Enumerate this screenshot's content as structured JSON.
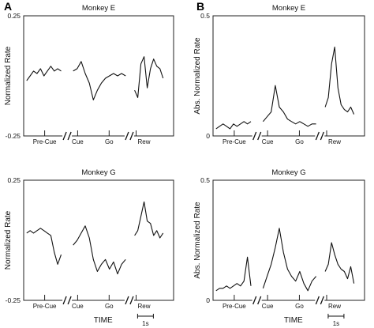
{
  "chart_data": [
    {
      "type": "line",
      "panel_letter": "A",
      "title": "Monkey E",
      "ylabel": "Normalized Rate",
      "ylim": [
        -0.25,
        0.25
      ],
      "yticks": [
        "0.25",
        "-0.25"
      ],
      "xticks": [
        "Pre-Cue",
        "Cue",
        "Go",
        "Rew"
      ],
      "xlabel": "",
      "segments": [
        {
          "x": [
            0,
            10,
            20,
            30,
            40,
            50,
            60,
            70,
            80,
            90,
            100
          ],
          "y": [
            -0.02,
            0.0,
            0.02,
            0.01,
            0.03,
            0.0,
            0.02,
            0.04,
            0.02,
            0.03,
            0.02
          ]
        },
        {
          "x": [
            0,
            8,
            16,
            24,
            32,
            40,
            48,
            56,
            64,
            72,
            80,
            88,
            96,
            104
          ],
          "y": [
            0.02,
            0.03,
            0.06,
            0.01,
            -0.03,
            -0.1,
            -0.06,
            -0.03,
            -0.01,
            0.0,
            0.01,
            0.0,
            0.01,
            0.0
          ]
        },
        {
          "x": [
            0,
            5,
            10,
            15,
            20,
            25,
            30,
            35,
            40,
            45
          ],
          "y": [
            -0.06,
            -0.09,
            0.05,
            0.08,
            -0.05,
            0.03,
            0.07,
            0.04,
            0.03,
            -0.01
          ]
        }
      ]
    },
    {
      "type": "line",
      "panel_letter": "B",
      "title": "Monkey E",
      "ylabel": "Abs. Normalized Rate",
      "ylim": [
        0,
        0.5
      ],
      "yticks": [
        "0.5",
        "0"
      ],
      "xticks": [
        "Pre-Cue",
        "Cue",
        "Go",
        "Rew"
      ],
      "xlabel": "",
      "segments": [
        {
          "x": [
            0,
            10,
            20,
            30,
            40,
            50,
            60,
            70,
            80,
            90,
            100
          ],
          "y": [
            0.03,
            0.04,
            0.05,
            0.04,
            0.03,
            0.05,
            0.04,
            0.05,
            0.06,
            0.05,
            0.06
          ]
        },
        {
          "x": [
            0,
            8,
            16,
            24,
            32,
            40,
            48,
            56,
            64,
            72,
            80,
            88,
            96,
            104
          ],
          "y": [
            0.06,
            0.08,
            0.1,
            0.21,
            0.12,
            0.1,
            0.07,
            0.06,
            0.05,
            0.06,
            0.05,
            0.04,
            0.05,
            0.05
          ]
        },
        {
          "x": [
            0,
            5,
            10,
            15,
            20,
            25,
            30,
            35,
            40,
            45
          ],
          "y": [
            0.12,
            0.16,
            0.3,
            0.37,
            0.2,
            0.13,
            0.11,
            0.1,
            0.12,
            0.09
          ]
        }
      ]
    },
    {
      "type": "line",
      "title": "Monkey G",
      "ylabel": "Normalized Rate",
      "ylim": [
        -0.25,
        0.25
      ],
      "yticks": [
        "0.25",
        "-0.25"
      ],
      "xticks": [
        "Pre-Cue",
        "Cue",
        "Go",
        "Rew"
      ],
      "xlabel": "TIME",
      "scale_bar": "1s",
      "segments": [
        {
          "x": [
            0,
            10,
            20,
            30,
            40,
            50,
            60,
            70,
            80,
            90,
            100
          ],
          "y": [
            0.03,
            0.04,
            0.03,
            0.04,
            0.05,
            0.04,
            0.03,
            0.02,
            -0.05,
            -0.1,
            -0.06
          ]
        },
        {
          "x": [
            0,
            8,
            16,
            24,
            32,
            40,
            48,
            56,
            64,
            72,
            80,
            88,
            96,
            104
          ],
          "y": [
            -0.02,
            0.0,
            0.03,
            0.06,
            0.01,
            -0.08,
            -0.13,
            -0.1,
            -0.08,
            -0.12,
            -0.09,
            -0.14,
            -0.1,
            -0.08
          ]
        },
        {
          "x": [
            0,
            5,
            10,
            15,
            20,
            25,
            30,
            35,
            40,
            45
          ],
          "y": [
            0.02,
            0.04,
            0.1,
            0.16,
            0.08,
            0.07,
            0.02,
            0.04,
            0.01,
            0.03
          ]
        }
      ]
    },
    {
      "type": "line",
      "title": "Monkey G",
      "ylabel": "Abs. Normalized Rate",
      "ylim": [
        0,
        0.5
      ],
      "yticks": [
        "0.5",
        "0"
      ],
      "xticks": [
        "Pre-Cue",
        "Cue",
        "Go",
        "Rew"
      ],
      "xlabel": "TIME",
      "scale_bar": "1s",
      "segments": [
        {
          "x": [
            0,
            10,
            20,
            30,
            40,
            50,
            60,
            70,
            80,
            90,
            100
          ],
          "y": [
            0.04,
            0.05,
            0.05,
            0.06,
            0.05,
            0.06,
            0.07,
            0.06,
            0.08,
            0.18,
            0.06
          ]
        },
        {
          "x": [
            0,
            8,
            16,
            24,
            32,
            40,
            48,
            56,
            64,
            72,
            80,
            88,
            96,
            104
          ],
          "y": [
            0.05,
            0.1,
            0.15,
            0.22,
            0.3,
            0.2,
            0.13,
            0.1,
            0.08,
            0.12,
            0.07,
            0.04,
            0.08,
            0.1
          ]
        },
        {
          "x": [
            0,
            5,
            10,
            15,
            20,
            25,
            30,
            35,
            40,
            45
          ],
          "y": [
            0.12,
            0.15,
            0.24,
            0.19,
            0.15,
            0.13,
            0.12,
            0.09,
            0.14,
            0.07
          ]
        }
      ]
    }
  ]
}
